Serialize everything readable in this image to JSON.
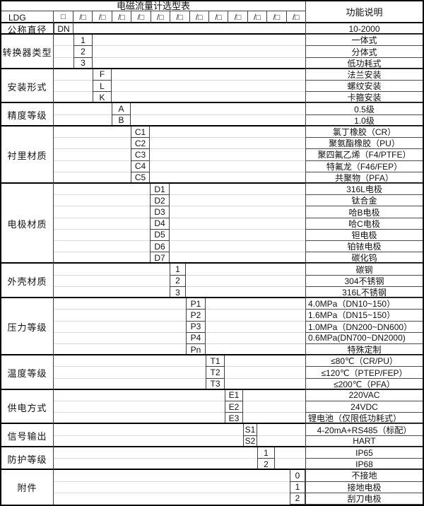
{
  "title": "电磁流量计选型表",
  "function_header": "功能说明",
  "model_prefix": "LDG",
  "model_box": "□",
  "model_slots": [
    "/□",
    "/□",
    "/□",
    "/□",
    "/□",
    "/□",
    "/□",
    "/□",
    "/□",
    "/□",
    "/□",
    "/□"
  ],
  "categories": [
    {
      "label": "公称直径",
      "codes": [
        "DN"
      ],
      "functions": [
        "10-2000"
      ]
    },
    {
      "label": "转换器类型",
      "codes": [
        "1",
        "2",
        "3"
      ],
      "functions": [
        "一体式",
        "分体式",
        "低功耗式"
      ]
    },
    {
      "label": "安装形式",
      "codes": [
        "F",
        "L",
        "K"
      ],
      "functions": [
        "法兰安装",
        "螺纹安装",
        "卡箍安装"
      ]
    },
    {
      "label": "精度等级",
      "codes": [
        "A",
        "B"
      ],
      "functions": [
        "0.5级",
        "1.0级"
      ]
    },
    {
      "label": "衬里材质",
      "codes": [
        "C1",
        "C2",
        "C3",
        "C4",
        "C5"
      ],
      "functions": [
        "氯丁橡胶（CR）",
        "聚氨酯橡胶（PU）",
        "聚四氟乙烯（F4/PTFE）",
        "特氟龙（F46/FEP）",
        "共聚物（PFA）"
      ]
    },
    {
      "label": "电极材质",
      "codes": [
        "D1",
        "D2",
        "D3",
        "D4",
        "D5",
        "D6",
        "D7"
      ],
      "functions": [
        "316L电极",
        "钛合金",
        "哈B电极",
        "哈C电极",
        "钽电极",
        "铂铱电极",
        "碳化钨"
      ]
    },
    {
      "label": "外壳材质",
      "codes": [
        "1",
        "2",
        "3"
      ],
      "functions": [
        "碳钢",
        "304不锈钢",
        "316L不锈钢"
      ]
    },
    {
      "label": "压力等级",
      "codes": [
        "P1",
        "P2",
        "P3",
        "P4",
        "Pn"
      ],
      "functions": [
        "4.0MPa（DN10~150）",
        "1.6MPa（DN15~150）",
        "1.0MPa（DN200~DN600）",
        "0.6MPa(DN700~DN2000)",
        "特殊定制"
      ],
      "fn_align": [
        "l",
        "l",
        "l",
        "l",
        "c"
      ]
    },
    {
      "label": "温度等级",
      "codes": [
        "T1",
        "T2",
        "T3"
      ],
      "functions": [
        "≤80℃（CR/PU）",
        "≤120℃（PTEP/FEP）",
        "≤200℃（PFA）"
      ]
    },
    {
      "label": "供电方式",
      "codes": [
        "E1",
        "E2",
        "E3"
      ],
      "functions": [
        "220VAC",
        "24VDC",
        "锂电池（仅限低功耗式）"
      ],
      "fn_align": [
        "c",
        "c",
        "l"
      ]
    },
    {
      "label": "信号输出",
      "codes": [
        "S1",
        "S2"
      ],
      "functions": [
        "4-20mA+RS485（标配）",
        "HART"
      ]
    },
    {
      "label": "防护等级",
      "codes": [
        "1",
        "2"
      ],
      "functions": [
        "IP65",
        "IP68"
      ]
    },
    {
      "label": "附件",
      "codes": [
        "0",
        "1",
        "2"
      ],
      "functions": [
        "不接地",
        "接地电极",
        "刮刀电极"
      ]
    }
  ]
}
